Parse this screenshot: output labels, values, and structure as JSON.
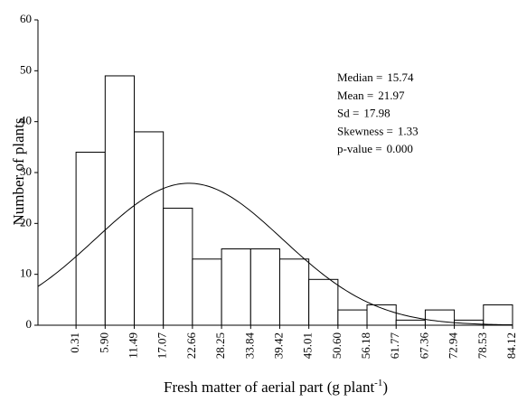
{
  "chart_data": {
    "type": "histogram",
    "y_label": "Number of plants",
    "x_label": {
      "text": "Fresh matter of aerial part (g plant",
      "sup": "-1",
      "end": ")"
    },
    "bins": [
      0.31,
      5.9,
      11.49,
      17.07,
      22.66,
      28.25,
      33.84,
      39.42,
      45.01,
      50.6,
      56.18,
      61.77,
      67.36,
      72.94,
      78.53,
      84.12
    ],
    "values": [
      34,
      49,
      38,
      23,
      13,
      15,
      15,
      13,
      9,
      3,
      4,
      1,
      3,
      1,
      4
    ],
    "color": "#ffffff",
    "xlim": [
      -7,
      84.12
    ],
    "xticks": [
      0.31,
      {
        "value": 5.9,
        "label": "5.90"
      },
      11.49,
      17.07,
      22.66,
      28.25,
      33.84,
      39.42,
      45.01,
      {
        "value": 50.6,
        "label": "50.60"
      },
      56.18,
      61.77,
      67.36,
      72.94,
      78.53,
      84.12
    ],
    "ylim": [
      0,
      60
    ],
    "yticks": [
      0,
      10,
      20,
      30,
      40,
      50,
      60
    ],
    "grid": false,
    "normal_curve": true,
    "stats": [
      {
        "label": "Median =",
        "value": 15.74
      },
      {
        "label": "Mean =",
        "value": 21.97
      },
      {
        "label": "Sd =",
        "value": 17.98
      },
      {
        "label": "Skewness =",
        "value": 1.33
      },
      {
        "label": "p-value =",
        "value": 0,
        "value_label": "0.000"
      }
    ]
  }
}
